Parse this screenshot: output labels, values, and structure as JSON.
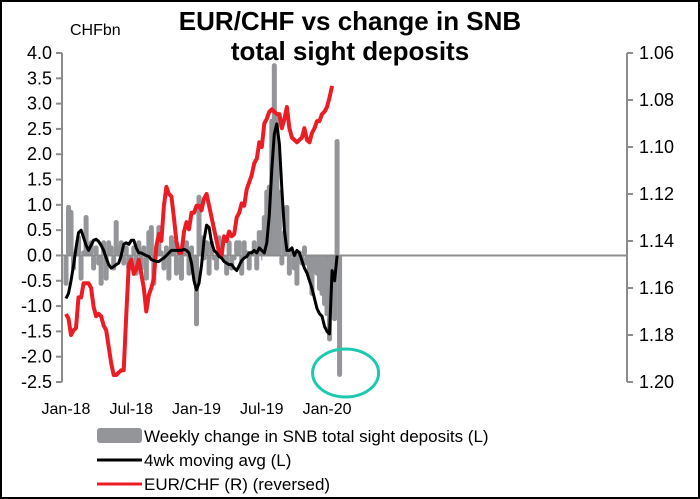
{
  "chart_data": {
    "type": "bar+line",
    "title": [
      "EUR/CHF vs change in SNB",
      "total sight deposits"
    ],
    "left_axis": {
      "unit_label": "CHFbn",
      "ylim": [
        -2.5,
        4.0
      ],
      "ticks": [
        "4.0",
        "3.5",
        "3.0",
        "2.5",
        "2.0",
        "1.5",
        "1.0",
        "0.5",
        "0.0",
        "-0.5",
        "-1.0",
        "-1.5",
        "-2.0",
        "-2.5"
      ],
      "tick_values": [
        4.0,
        3.5,
        3.0,
        2.5,
        2.0,
        1.5,
        1.0,
        0.5,
        0.0,
        -0.5,
        -1.0,
        -1.5,
        -2.0,
        -2.5
      ]
    },
    "right_axis": {
      "ylim": [
        1.06,
        1.2
      ],
      "reversed": true,
      "ticks": [
        "1.06",
        "1.08",
        "1.10",
        "1.12",
        "1.14",
        "1.16",
        "1.18",
        "1.20"
      ],
      "tick_values": [
        1.06,
        1.08,
        1.1,
        1.12,
        1.14,
        1.16,
        1.18,
        1.2
      ]
    },
    "x_axis": {
      "ticks": [
        "Jan-18",
        "Jul-18",
        "Jan-19",
        "Jul-19",
        "Jan-20"
      ],
      "tick_weeks": [
        0,
        26,
        52,
        78,
        104
      ],
      "total_weeks": 108
    },
    "series": [
      {
        "name": "Weekly change in SNB total sight deposits (L)",
        "kind": "bar",
        "color": "#939598",
        "values": [
          -0.6,
          1.0,
          0.9,
          -0.3,
          0.1,
          0.4,
          -0.5,
          0.1,
          0.8,
          0.1,
          0.3,
          -0.3,
          0.2,
          -0.2,
          -0.6,
          0.3,
          -0.5,
          0.3,
          0.2,
          -0.3,
          0.7,
          0.2,
          0.3,
          -0.2,
          0.2,
          -0.3,
          -0.3,
          0.2,
          -0.4,
          0.3,
          -0.3,
          0.2,
          -0.5,
          0.5,
          0.6,
          -0.6,
          0.2,
          0.6,
          0.1,
          -0.3,
          0.2,
          -0.5,
          0.4,
          0.3,
          -0.4,
          0.1,
          -0.5,
          0.2,
          0.3,
          -0.4,
          0.2,
          -0.4,
          -1.4,
          1.2,
          0.4,
          -0.1,
          0.3,
          -0.4,
          0.3,
          -0.1,
          -0.3,
          0.4,
          0.3,
          -0.1,
          -0.4,
          0.3,
          -0.3,
          -0.1,
          0.3,
          0.3,
          -0.4,
          0.3,
          0.1,
          -0.3,
          0.1,
          0.3,
          -0.3,
          0.5,
          0.5,
          0.8,
          1.3,
          1.4,
          2.7,
          3.8,
          2.8,
          1.3,
          -0.2,
          0.5,
          1.0,
          -0.4,
          0.1,
          -0.3,
          -0.6,
          0.1,
          -0.2,
          0.2,
          -0.2,
          -0.5,
          -0.8,
          -0.3,
          -0.4,
          -0.7,
          -0.8,
          -1.0,
          -1.2,
          -1.7,
          -1.2,
          -1.3,
          2.3,
          -2.4
        ]
      },
      {
        "name": "4wk moving avg (L)",
        "kind": "line",
        "color": "#000000",
        "values": [
          -0.85,
          -0.75,
          -0.5,
          -0.2,
          0.15,
          0.45,
          0.5,
          0.35,
          0.2,
          0.1,
          0.2,
          0.3,
          0.32,
          0.28,
          0.2,
          0.1,
          -0.05,
          -0.18,
          -0.25,
          -0.22,
          -0.18,
          -0.15,
          0.0,
          0.22,
          0.25,
          0.22,
          0.3,
          0.3,
          0.15,
          0.05,
          0.05,
          0.02,
          0.0,
          -0.02,
          -0.08,
          -0.1,
          -0.12,
          -0.12,
          -0.08,
          -0.05,
          0.0,
          0.05,
          0.1,
          0.1,
          0.1,
          0.1,
          0.1,
          0.12,
          0.1,
          0.05,
          -0.15,
          -0.5,
          -0.68,
          -0.55,
          -0.2,
          0.3,
          0.6,
          0.55,
          0.25,
          0.1,
          0.05,
          -0.02,
          -0.05,
          -0.12,
          -0.15,
          -0.18,
          -0.18,
          -0.25,
          -0.3,
          -0.2,
          -0.1,
          -0.05,
          -0.02,
          0.05,
          0.05,
          0.1,
          0.05,
          0.15,
          0.1,
          0.05,
          0.25,
          0.8,
          1.7,
          2.4,
          2.6,
          2.2,
          1.3,
          0.5,
          0.1,
          0.1,
          0.15,
          0.0,
          0.1,
          0.05,
          -0.1,
          -0.25,
          -0.35,
          -0.5,
          -0.65,
          -0.85,
          -1.05,
          -1.15,
          -1.2,
          -1.4,
          -1.5,
          -1.55,
          -0.3,
          -0.5,
          0.0
        ]
      },
      {
        "name": "EUR/CHF (R) (reversed)",
        "kind": "line",
        "axis": "right",
        "color": "#ed1c24",
        "values": [
          1.171,
          1.173,
          1.18,
          1.178,
          1.177,
          1.164,
          1.164,
          1.158,
          1.158,
          1.158,
          1.16,
          1.168,
          1.172,
          1.171,
          1.172,
          1.176,
          1.178,
          1.185,
          1.192,
          1.197,
          1.197,
          1.196,
          1.195,
          1.195,
          1.172,
          1.15,
          1.148,
          1.154,
          1.152,
          1.148,
          1.154,
          1.16,
          1.17,
          1.163,
          1.16,
          1.156,
          1.142,
          1.137,
          1.14,
          1.125,
          1.117,
          1.12,
          1.121,
          1.13,
          1.14,
          1.145,
          1.145,
          1.136,
          1.132,
          1.135,
          1.128,
          1.128,
          1.125,
          1.125,
          1.127,
          1.122,
          1.12,
          1.125,
          1.13,
          1.135,
          1.14,
          1.145,
          1.146,
          1.138,
          1.14,
          1.136,
          1.138,
          1.137,
          1.13,
          1.128,
          1.124,
          1.125,
          1.118,
          1.115,
          1.112,
          1.107,
          1.105,
          1.098,
          1.1,
          1.09,
          1.088,
          1.085,
          1.084,
          1.085,
          1.086,
          1.086,
          1.092,
          1.088,
          1.083,
          1.092,
          1.096,
          1.097,
          1.098,
          1.097,
          1.096,
          1.092,
          1.097,
          1.098,
          1.094,
          1.092,
          1.089,
          1.089,
          1.086,
          1.085,
          1.083,
          1.079,
          1.074
        ]
      }
    ],
    "annotation": {
      "kind": "ellipse",
      "color": "#1fc9b0",
      "target": "last weekly bar"
    },
    "grid": false,
    "legend_placement": "bottom"
  }
}
